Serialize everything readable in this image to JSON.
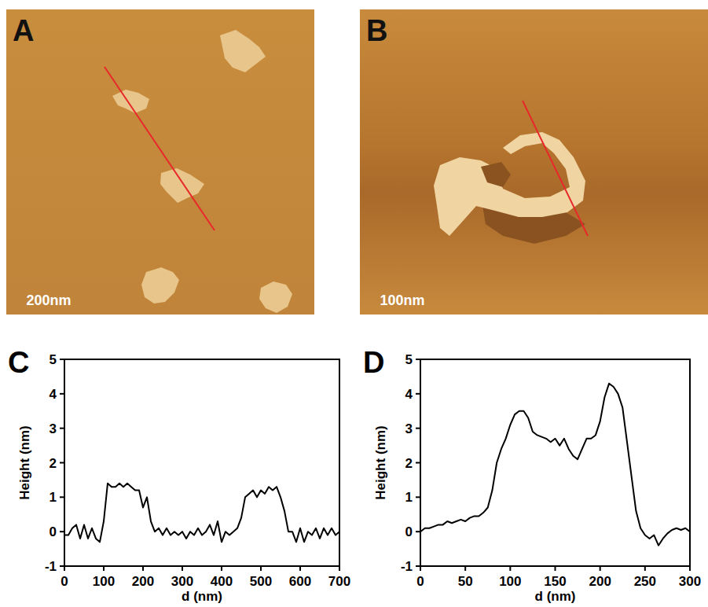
{
  "images": [
    {
      "panel": "A",
      "scale_bar": "200nm"
    },
    {
      "panel": "B",
      "scale_bar": "100nm"
    }
  ],
  "chart_data": [
    {
      "type": "line",
      "panel": "C",
      "x_label": "d (nm)",
      "y_label": "Height (nm)",
      "color": "#000000",
      "x": [
        0,
        10,
        20,
        30,
        40,
        50,
        60,
        70,
        80,
        90,
        100,
        110,
        120,
        130,
        140,
        150,
        160,
        170,
        180,
        190,
        200,
        210,
        220,
        230,
        240,
        250,
        260,
        270,
        280,
        290,
        300,
        310,
        320,
        330,
        340,
        350,
        360,
        370,
        380,
        390,
        400,
        410,
        420,
        430,
        440,
        450,
        460,
        470,
        480,
        490,
        500,
        510,
        520,
        530,
        540,
        550,
        560,
        570,
        580,
        590,
        600,
        610,
        620,
        630,
        640,
        650,
        660,
        670,
        680,
        690,
        700
      ],
      "values": [
        -0.1,
        -0.1,
        0.1,
        0.2,
        -0.2,
        0.2,
        -0.2,
        0.1,
        -0.2,
        -0.3,
        0.3,
        1.4,
        1.3,
        1.3,
        1.4,
        1.3,
        1.4,
        1.3,
        1.2,
        1.2,
        0.7,
        1.0,
        0.3,
        0.0,
        0.1,
        -0.1,
        0.1,
        -0.1,
        0.0,
        -0.1,
        0.0,
        -0.2,
        0.0,
        -0.1,
        0.1,
        -0.1,
        0.0,
        0.2,
        -0.1,
        0.3,
        -0.3,
        0.0,
        -0.1,
        0.0,
        0.1,
        0.4,
        1.0,
        1.1,
        1.2,
        1.0,
        1.2,
        1.1,
        1.3,
        1.2,
        1.3,
        1.0,
        0.6,
        0.0,
        0.0,
        -0.3,
        0.1,
        -0.3,
        0.0,
        -0.1,
        0.1,
        -0.2,
        0.1,
        -0.1,
        0.1,
        -0.1,
        0.0
      ],
      "xlim": [
        0,
        700
      ],
      "xticks": [
        0,
        100,
        200,
        300,
        400,
        500,
        600,
        700
      ],
      "ylim": [
        -1,
        5
      ],
      "yticks": [
        -1,
        0,
        1,
        2,
        3,
        4,
        5
      ]
    },
    {
      "type": "line",
      "panel": "D",
      "x_label": "d (nm)",
      "y_label": "Height (nm)",
      "color": "#000000",
      "x": [
        0,
        5,
        10,
        15,
        20,
        25,
        30,
        35,
        40,
        45,
        50,
        55,
        60,
        65,
        70,
        75,
        80,
        85,
        90,
        95,
        100,
        105,
        110,
        115,
        120,
        125,
        130,
        135,
        140,
        145,
        150,
        155,
        160,
        165,
        170,
        175,
        180,
        185,
        190,
        195,
        200,
        205,
        210,
        215,
        220,
        225,
        230,
        235,
        240,
        245,
        250,
        255,
        260,
        265,
        270,
        275,
        280,
        285,
        290,
        295,
        300
      ],
      "values": [
        0.0,
        0.1,
        0.1,
        0.15,
        0.2,
        0.2,
        0.3,
        0.25,
        0.3,
        0.35,
        0.3,
        0.4,
        0.45,
        0.45,
        0.55,
        0.7,
        1.2,
        2.0,
        2.4,
        2.7,
        3.1,
        3.4,
        3.5,
        3.5,
        3.3,
        2.9,
        2.8,
        2.75,
        2.7,
        2.6,
        2.7,
        2.5,
        2.7,
        2.4,
        2.2,
        2.1,
        2.4,
        2.7,
        2.7,
        2.8,
        3.2,
        3.9,
        4.3,
        4.2,
        4.0,
        3.6,
        2.6,
        1.6,
        0.6,
        0.1,
        -0.1,
        -0.2,
        -0.1,
        -0.4,
        -0.2,
        -0.05,
        0.05,
        0.1,
        0.05,
        0.1,
        0.0
      ],
      "xlim": [
        0,
        300
      ],
      "xticks": [
        0,
        50,
        100,
        150,
        200,
        250,
        300
      ],
      "ylim": [
        -1,
        5
      ],
      "yticks": [
        -1,
        0,
        1,
        2,
        3,
        4,
        5
      ]
    }
  ]
}
